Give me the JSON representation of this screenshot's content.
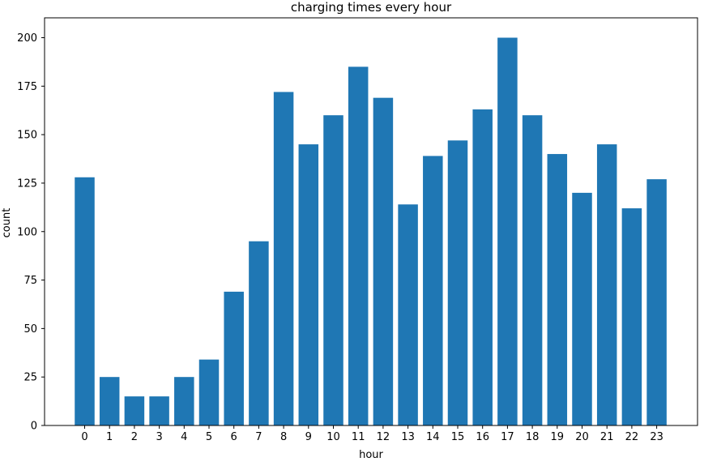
{
  "chart_data": {
    "type": "bar",
    "title": "charging times every hour",
    "xlabel": "hour",
    "ylabel": "count",
    "categories": [
      "0",
      "1",
      "2",
      "3",
      "4",
      "5",
      "6",
      "7",
      "8",
      "9",
      "10",
      "11",
      "12",
      "13",
      "14",
      "15",
      "16",
      "17",
      "18",
      "19",
      "20",
      "21",
      "22",
      "23"
    ],
    "values": [
      128,
      25,
      15,
      15,
      25,
      34,
      69,
      95,
      172,
      145,
      160,
      185,
      169,
      114,
      139,
      147,
      163,
      200,
      160,
      140,
      120,
      145,
      112,
      127
    ],
    "yticks": [
      0,
      25,
      50,
      75,
      100,
      125,
      150,
      175,
      200
    ],
    "ylim": [
      0,
      210
    ],
    "grid": false,
    "colors": {
      "bar": "#1f77b4",
      "axis": "#000000",
      "background": "#ffffff"
    }
  }
}
